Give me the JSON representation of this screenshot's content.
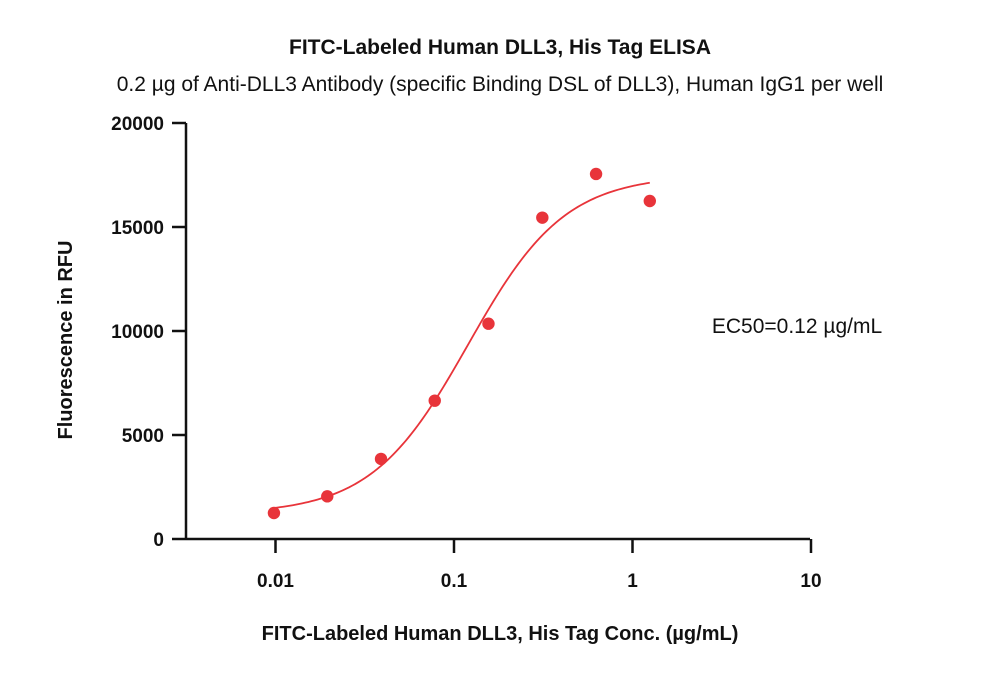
{
  "chart_data": {
    "type": "scatter",
    "title": "FITC-Labeled Human DLL3, His Tag ELISA",
    "subtitle": "0.2 µg of Anti-DLL3 Antibody (specific Binding DSL of DLL3), Human IgG1 per well",
    "xlabel": "FITC-Labeled Human DLL3, His Tag Conc. (µg/mL)",
    "ylabel": "Fluorescence in RFU",
    "x_scale": "log",
    "xlim": [
      0.005,
      10
    ],
    "ylim": [
      0,
      20000
    ],
    "x_ticks": [
      0.01,
      0.1,
      1,
      10
    ],
    "x_tick_labels": [
      "0.01",
      "0.1",
      "1",
      "10"
    ],
    "y_ticks": [
      0,
      5000,
      10000,
      15000,
      20000
    ],
    "y_tick_labels": [
      "0",
      "5000",
      "10000",
      "15000",
      "20000"
    ],
    "grid": false,
    "legend": "none",
    "annotation": "EC50=0.12 µg/mL",
    "color": "#e8343a",
    "points": {
      "x": [
        0.0098,
        0.0195,
        0.039,
        0.078,
        0.156,
        0.3125,
        0.625,
        1.25
      ],
      "y": [
        1250,
        2050,
        3850,
        6650,
        10350,
        15450,
        17550,
        16250
      ]
    },
    "fit_curve": {
      "model": "4PL",
      "bottom": 1200,
      "top": 17500,
      "ec50": 0.12,
      "hill": 1.6,
      "x_range": [
        0.0098,
        1.25
      ]
    }
  }
}
